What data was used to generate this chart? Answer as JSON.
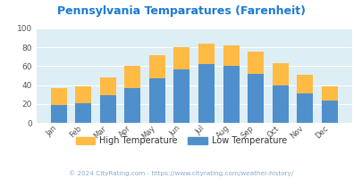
{
  "title": "Pennsylvania Temparatures (Farenheit)",
  "months": [
    "Jan",
    "Feb",
    "Mar",
    "Apr",
    "May",
    "Jun",
    "Jul",
    "Aug",
    "Sep",
    "Oct",
    "Nov",
    "Dec"
  ],
  "low_temps": [
    19,
    21,
    29,
    37,
    47,
    57,
    62,
    60,
    52,
    40,
    31,
    24
  ],
  "high_temps": [
    37,
    39,
    48,
    60,
    72,
    80,
    84,
    82,
    75,
    63,
    51,
    39
  ],
  "bar_color_low": "#4f8fcc",
  "bar_color_high": "#ffbb44",
  "title_color": "#1a7ad4",
  "fig_bg": "#ffffff",
  "plot_bg": "#deeef5",
  "ylim": [
    0,
    100
  ],
  "yticks": [
    0,
    20,
    40,
    60,
    80,
    100
  ],
  "footer_text": "© 2024 CityRating.com - https://www.cityrating.com/weather-history/",
  "footer_color": "#88aacc",
  "legend_high": "High Temperature",
  "legend_low": "Low Temperature",
  "legend_text_color": "#333333",
  "grid_color": "#c8dde8"
}
